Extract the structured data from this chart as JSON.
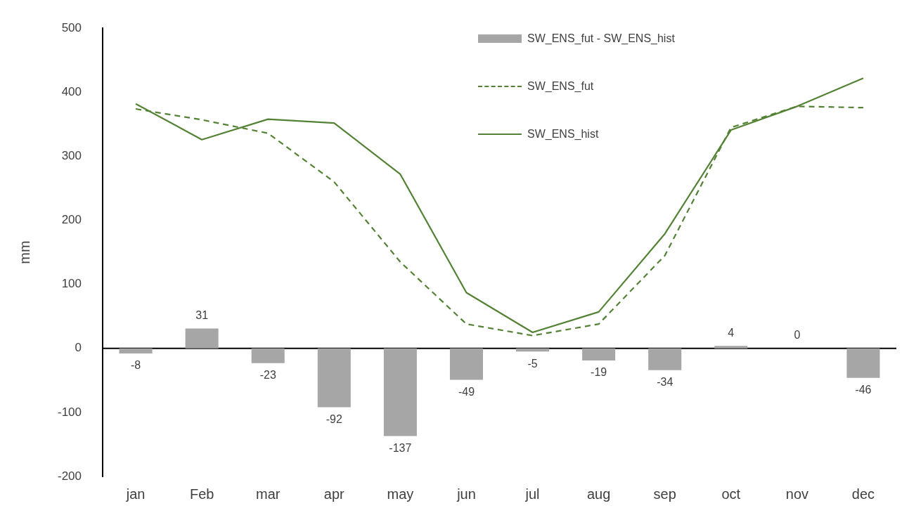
{
  "chart_data": {
    "type": "bar",
    "ylabel": "mm",
    "categories": [
      "jan",
      "Feb",
      "mar",
      "apr",
      "may",
      "jun",
      "jul",
      "aug",
      "sep",
      "oct",
      "nov",
      "dec"
    ],
    "series": [
      {
        "name": "SW_ENS_fut - SW_ENS_hist",
        "color": "#a6a6a6",
        "values": [
          -8,
          31,
          -23,
          -92,
          -137,
          -49,
          -5,
          -19,
          -34,
          4,
          0,
          -46
        ],
        "value_labels": [
          "-8",
          "31",
          "-23",
          "-92",
          "-137",
          "-49",
          "-5",
          "-19",
          "-34",
          "4",
          "0",
          "-46"
        ]
      },
      {
        "name": "SW_ENS_fut",
        "type": "line",
        "color": "#548235",
        "line_style": "dashed",
        "values": [
          374,
          357,
          336,
          260,
          135,
          38,
          20,
          38,
          145,
          345,
          378,
          376
        ]
      },
      {
        "name": "SW_ENS_hist",
        "type": "line",
        "color": "#548235",
        "line_style": "solid",
        "values": [
          382,
          326,
          358,
          352,
          272,
          87,
          25,
          57,
          179,
          341,
          378,
          422
        ]
      }
    ],
    "ylim": [
      -200,
      500
    ],
    "yticks": [
      -200,
      -100,
      0,
      100,
      200,
      300,
      400,
      500
    ],
    "grid": false,
    "ref_lines": [
      {
        "axis": "y",
        "value": 0,
        "color": "#000000"
      }
    ],
    "legend": "top right",
    "marker": "none"
  }
}
